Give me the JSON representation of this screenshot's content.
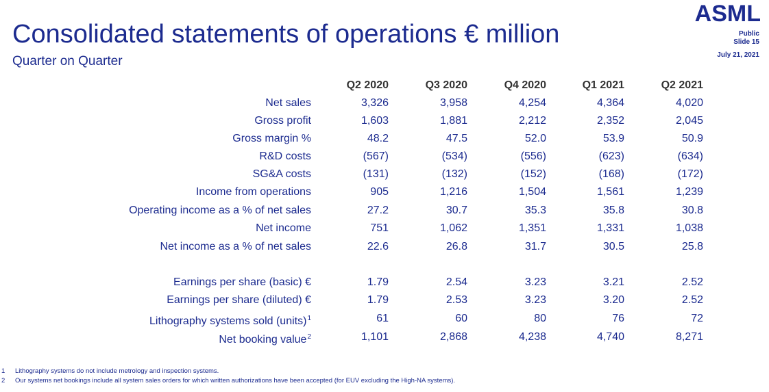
{
  "header": {
    "title": "Consolidated statements of operations € million",
    "subtitle": "Quarter on Quarter"
  },
  "brand": {
    "logo": "ASML",
    "classification": "Public",
    "slide": "Slide 15",
    "date": "July 21, 2021"
  },
  "table": {
    "columns": [
      "Q2 2020",
      "Q3 2020",
      "Q4 2020",
      "Q1 2021",
      "Q2 2021"
    ],
    "rows": [
      {
        "label": "Net sales",
        "sup": "",
        "values": [
          "3,326",
          "3,958",
          "4,254",
          "4,364",
          "4,020"
        ]
      },
      {
        "label": "Gross profit",
        "sup": "",
        "values": [
          "1,603",
          "1,881",
          "2,212",
          "2,352",
          "2,045"
        ]
      },
      {
        "label": "Gross margin %",
        "sup": "",
        "values": [
          "48.2",
          "47.5",
          "52.0",
          "53.9",
          "50.9"
        ]
      },
      {
        "label": "R&D costs",
        "sup": "",
        "values": [
          "(567)",
          "(534)",
          "(556)",
          "(623)",
          "(634)"
        ]
      },
      {
        "label": "SG&A costs",
        "sup": "",
        "values": [
          "(131)",
          "(132)",
          "(152)",
          "(168)",
          "(172)"
        ]
      },
      {
        "label": "Income from operations",
        "sup": "",
        "values": [
          "905",
          "1,216",
          "1,504",
          "1,561",
          "1,239"
        ]
      },
      {
        "label": "Operating income as a % of net sales",
        "sup": "",
        "values": [
          "27.2",
          "30.7",
          "35.3",
          "35.8",
          "30.8"
        ]
      },
      {
        "label": "Net income",
        "sup": "",
        "values": [
          "751",
          "1,062",
          "1,351",
          "1,331",
          "1,038"
        ]
      },
      {
        "label": "Net income as a % of net sales",
        "sup": "",
        "values": [
          "22.6",
          "26.8",
          "31.7",
          "30.5",
          "25.8"
        ]
      },
      {
        "label": "Earnings per share (basic) €",
        "sup": "",
        "values": [
          "1.79",
          "2.54",
          "3.23",
          "3.21",
          "2.52"
        ]
      },
      {
        "label": "Earnings per share (diluted) €",
        "sup": "",
        "values": [
          "1.79",
          "2.53",
          "3.23",
          "3.20",
          "2.52"
        ]
      },
      {
        "label": "Lithography systems sold (units)",
        "sup": "1",
        "values": [
          "61",
          "60",
          "80",
          "76",
          "72"
        ]
      },
      {
        "label": "Net booking value",
        "sup": "2",
        "values": [
          "1,101",
          "2,868",
          "4,238",
          "4,740",
          "8,271"
        ]
      }
    ]
  },
  "footnotes": [
    {
      "num": "1",
      "text": "Lithography systems do not include metrology and inspection systems."
    },
    {
      "num": "2",
      "text": "Our systems net bookings include all system sales orders for which written authorizations have been accepted (for EUV excluding the High-NA systems)."
    }
  ]
}
